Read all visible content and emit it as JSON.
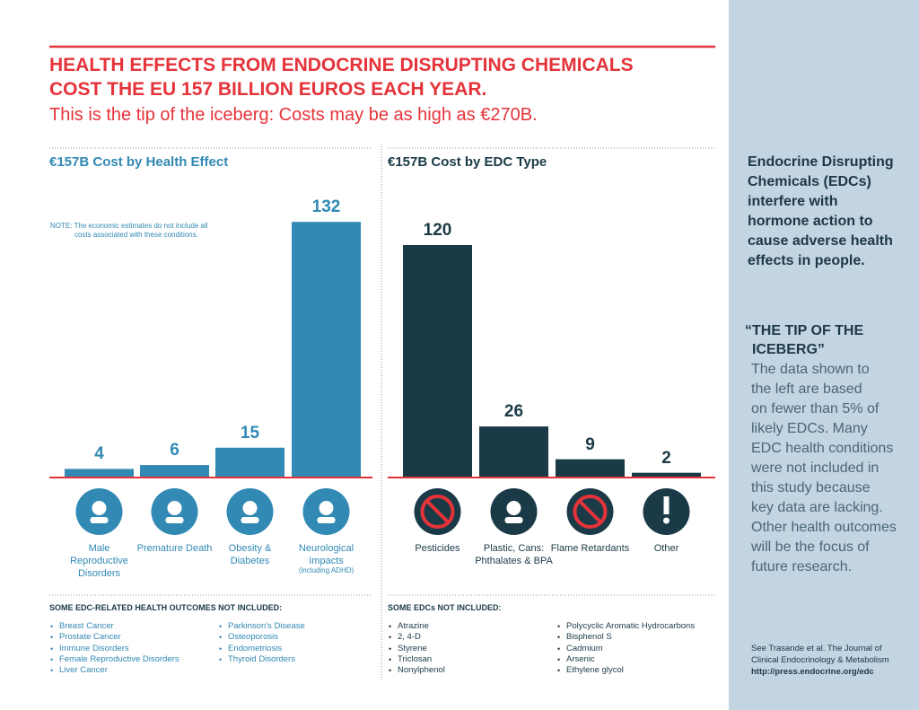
{
  "header": {
    "title_lines": [
      "HEALTH EFFECTS FROM ENDOCRINE DISRUPTING CHEMICALS",
      "COST THE EU 157 BILLION EUROS EACH YEAR."
    ],
    "subtitle": "This is the tip of the iceberg: Costs may be as high as €270B."
  },
  "chart_data": [
    {
      "type": "bar",
      "title": "€157B Cost by Health Effect",
      "categories": [
        "Male Reproductive Disorders",
        "Premature Death",
        "Obesity & Diabetes",
        "Neurological Impacts"
      ],
      "values": [
        4,
        6,
        15,
        132
      ],
      "color": "#3189b4",
      "note": "NOTE: The economic estimates do not include all costs associated with these conditions.",
      "annotation": "(including ADHD)"
    },
    {
      "type": "bar",
      "title": "€157B Cost by EDC Type",
      "categories": [
        "Pesticides",
        "Plastic, Cans: Phthalates & BPA",
        "Flame Retardants",
        "Other"
      ],
      "values": [
        120,
        26,
        9,
        2
      ],
      "color": "#1b3a47"
    }
  ],
  "footer_lists": [
    {
      "title": "SOME EDC-RELATED HEALTH OUTCOMES NOT INCLUDED:",
      "columns": [
        [
          "Breast Cancer",
          "Prostate Cancer",
          "Immune Disorders",
          "Female Reproductive Disorders",
          "Liver Cancer"
        ],
        [
          "Parkinson's Disease",
          "Osteoporosis",
          "Endometriosis",
          "Thyroid Disorders"
        ]
      ]
    },
    {
      "title": "SOME EDCs NOT INCLUDED:",
      "columns": [
        [
          "Atrazine",
          "2, 4-D",
          "Styrene",
          "Triclosan",
          "Nonylphenol"
        ],
        [
          "Polycyclic Aromatic Hydrocarbons",
          "Bisphenol S",
          "Cadmium",
          "Arsenic",
          "Ethylene glycol"
        ]
      ]
    }
  ],
  "sidebar": {
    "intro_lines": [
      "Endocrine Disrupting",
      "Chemicals (EDCs)",
      "interfere with",
      "hormone action to",
      "cause adverse health",
      "effects in people."
    ],
    "quote_lines": [
      "“THE TIP OF THE",
      "ICEBERG”"
    ],
    "body_lines": [
      "The data shown to",
      "the left are based",
      "on fewer than 5% of",
      "likely EDCs. Many",
      "EDC health conditions",
      "were not included in",
      "this study because",
      "key data are lacking.",
      "Other health outcomes",
      "will be the focus of",
      "future research."
    ],
    "citation_lines": [
      "See Trasande et al. The Journal of",
      "Clinical Endocrinology & Metabolism",
      "http://press.endocrine.org/edc"
    ]
  }
}
